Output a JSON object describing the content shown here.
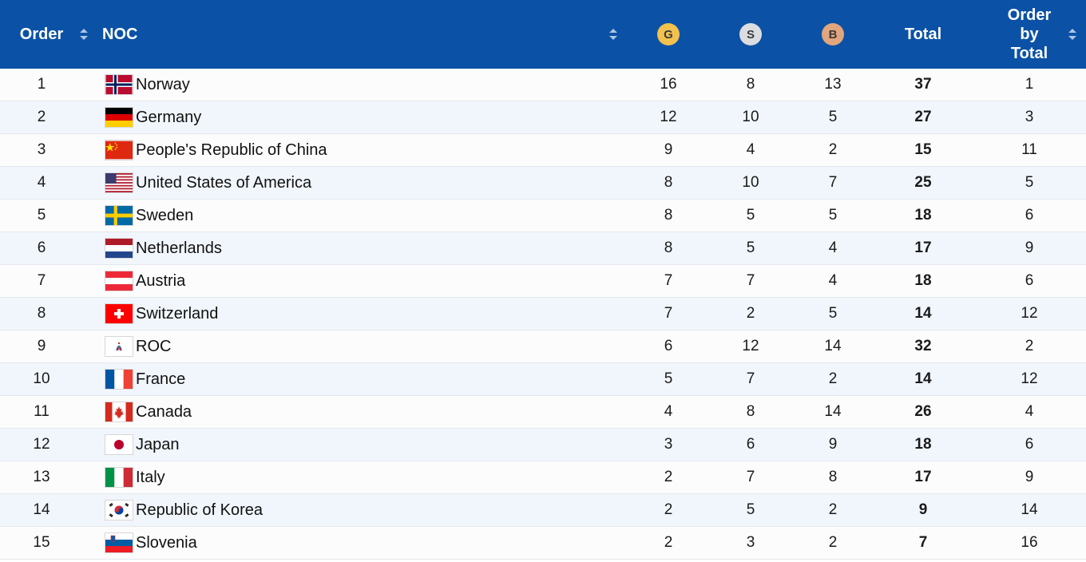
{
  "header": {
    "order": "Order",
    "noc": "NOC",
    "gold": "G",
    "silver": "S",
    "bronze": "B",
    "total": "Total",
    "order_by_total": [
      "Order",
      "by",
      "Total"
    ]
  },
  "colors": {
    "header_bg": "#0b52a6",
    "gold": "#f2c14e",
    "silver": "#dcdde0",
    "bronze": "#e3a57c",
    "row_alt": "#f1f6fd"
  },
  "rows": [
    {
      "order": "1",
      "noc": "Norway",
      "flag": "norway-flag-icon",
      "gold": "16",
      "silver": "8",
      "bronze": "13",
      "total": "37",
      "rank_total": "1"
    },
    {
      "order": "2",
      "noc": "Germany",
      "flag": "germany-flag-icon",
      "gold": "12",
      "silver": "10",
      "bronze": "5",
      "total": "27",
      "rank_total": "3"
    },
    {
      "order": "3",
      "noc": "People's Republic of China",
      "flag": "china-flag-icon",
      "gold": "9",
      "silver": "4",
      "bronze": "2",
      "total": "15",
      "rank_total": "11"
    },
    {
      "order": "4",
      "noc": "United States of America",
      "flag": "usa-flag-icon",
      "gold": "8",
      "silver": "10",
      "bronze": "7",
      "total": "25",
      "rank_total": "5"
    },
    {
      "order": "5",
      "noc": "Sweden",
      "flag": "sweden-flag-icon",
      "gold": "8",
      "silver": "5",
      "bronze": "5",
      "total": "18",
      "rank_total": "6"
    },
    {
      "order": "6",
      "noc": "Netherlands",
      "flag": "netherlands-flag-icon",
      "gold": "8",
      "silver": "5",
      "bronze": "4",
      "total": "17",
      "rank_total": "9"
    },
    {
      "order": "7",
      "noc": "Austria",
      "flag": "austria-flag-icon",
      "gold": "7",
      "silver": "7",
      "bronze": "4",
      "total": "18",
      "rank_total": "6"
    },
    {
      "order": "8",
      "noc": "Switzerland",
      "flag": "switzerland-flag-icon",
      "gold": "7",
      "silver": "2",
      "bronze": "5",
      "total": "14",
      "rank_total": "12"
    },
    {
      "order": "9",
      "noc": "ROC",
      "flag": "roc-flag-icon",
      "gold": "6",
      "silver": "12",
      "bronze": "14",
      "total": "32",
      "rank_total": "2"
    },
    {
      "order": "10",
      "noc": "France",
      "flag": "france-flag-icon",
      "gold": "5",
      "silver": "7",
      "bronze": "2",
      "total": "14",
      "rank_total": "12"
    },
    {
      "order": "11",
      "noc": "Canada",
      "flag": "canada-flag-icon",
      "gold": "4",
      "silver": "8",
      "bronze": "14",
      "total": "26",
      "rank_total": "4"
    },
    {
      "order": "12",
      "noc": "Japan",
      "flag": "japan-flag-icon",
      "gold": "3",
      "silver": "6",
      "bronze": "9",
      "total": "18",
      "rank_total": "6"
    },
    {
      "order": "13",
      "noc": "Italy",
      "flag": "italy-flag-icon",
      "gold": "2",
      "silver": "7",
      "bronze": "8",
      "total": "17",
      "rank_total": "9"
    },
    {
      "order": "14",
      "noc": "Republic of Korea",
      "flag": "korea-flag-icon",
      "gold": "2",
      "silver": "5",
      "bronze": "2",
      "total": "9",
      "rank_total": "14"
    },
    {
      "order": "15",
      "noc": "Slovenia",
      "flag": "slovenia-flag-icon",
      "gold": "2",
      "silver": "3",
      "bronze": "2",
      "total": "7",
      "rank_total": "16"
    }
  ]
}
